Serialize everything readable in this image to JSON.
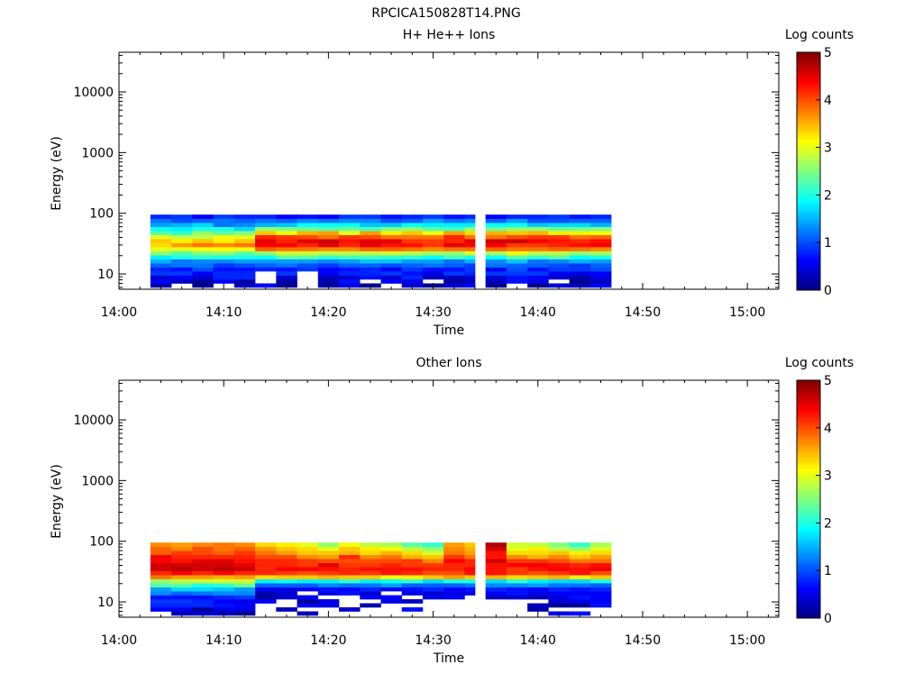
{
  "figure": {
    "title": "RPCICA150828T14.PNG"
  },
  "chart_data": [
    {
      "type": "heatmap",
      "title": "H+ He++ Ions",
      "xlabel": "Time",
      "ylabel": "Energy (eV)",
      "y_scale": "log",
      "xlim": [
        "14:00",
        "15:03"
      ],
      "ylim": [
        5.6,
        45000
      ],
      "x_ticks": [
        "14:00",
        "14:10",
        "14:20",
        "14:30",
        "14:40",
        "14:50",
        "15:00"
      ],
      "y_ticks": [
        "10",
        "100",
        "1000",
        "10000"
      ],
      "colorbar": {
        "label": "Log counts",
        "range": [
          0,
          5
        ],
        "ticks": [
          "0",
          "1",
          "2",
          "3",
          "4",
          "5"
        ]
      },
      "data_time_range": [
        "14:03",
        "14:47"
      ],
      "data_gap": [
        "14:34",
        "14:35"
      ],
      "energy_range_eV": [
        6,
        95
      ],
      "energy_bins_eV": [
        6.5,
        7.6,
        8.9,
        10.4,
        12.1,
        14.1,
        16.5,
        19.2,
        22.4,
        26.2,
        30.6,
        35.7,
        41.6,
        48.6,
        56.7,
        66.2,
        77.3,
        90.2
      ],
      "time_bins": [
        "14:03",
        "14:05",
        "14:07",
        "14:09",
        "14:11",
        "14:13",
        "14:15",
        "14:17",
        "14:19",
        "14:21",
        "14:23",
        "14:25",
        "14:27",
        "14:29",
        "14:31",
        "14:33",
        "14:35",
        "14:37",
        "14:39",
        "14:41",
        "14:43",
        "14:45"
      ],
      "log_counts": [
        [
          0.2,
          null,
          0.1,
          null,
          0.3,
          0.6,
          0.1,
          null,
          0.2,
          0.5,
          0.1,
          null,
          0.4,
          0.1,
          0.4,
          0.6,
          0.1,
          null,
          0.1,
          0.4,
          0.3,
          0.6
        ],
        [
          0.6,
          0.3,
          0.1,
          0.6,
          0.2,
          null,
          0.2,
          null,
          0.2,
          0.7,
          null,
          0.6,
          0.5,
          null,
          0.2,
          0.3,
          0.3,
          0.7,
          0.5,
          null,
          0.1,
          0.3
        ],
        [
          0.4,
          0.6,
          0.4,
          0.8,
          0.8,
          null,
          0.4,
          null,
          0.3,
          0.4,
          0.7,
          0.4,
          0.8,
          0.3,
          0.3,
          0.4,
          0.4,
          0.7,
          0.6,
          0.4,
          0.2,
          0.5
        ],
        [
          0.9,
          0.9,
          0.6,
          0.8,
          0.8,
          null,
          0.9,
          null,
          0.6,
          0.8,
          0.8,
          0.9,
          0.7,
          0.5,
          0.9,
          0.8,
          0.9,
          0.9,
          0.9,
          0.6,
          0.5,
          0.6
        ],
        [
          0.8,
          0.7,
          1.0,
          0.7,
          0.7,
          0.8,
          0.7,
          0.9,
          0.6,
          0.7,
          0.8,
          0.6,
          0.9,
          0.7,
          0.7,
          0.9,
          0.6,
          1.0,
          0.7,
          0.9,
          0.9,
          1.0
        ],
        [
          1.1,
          1.2,
          1.2,
          0.9,
          1.0,
          1.1,
          1.2,
          1.0,
          0.9,
          1.1,
          1.1,
          1.0,
          1.1,
          1.2,
          1.1,
          0.9,
          1.2,
          1.1,
          1.1,
          1.0,
          0.9,
          1.1
        ],
        [
          1.5,
          1.2,
          1.3,
          1.3,
          1.4,
          1.4,
          1.4,
          1.4,
          1.3,
          1.4,
          1.6,
          1.6,
          1.4,
          1.4,
          1.2,
          1.5,
          1.3,
          1.6,
          1.2,
          1.3,
          1.5,
          1.4
        ],
        [
          1.8,
          2.0,
          2.1,
          2.0,
          2.0,
          1.9,
          2.3,
          2.3,
          2.1,
          2.2,
          2.2,
          2.1,
          2.1,
          1.9,
          2.2,
          2.0,
          1.9,
          2.3,
          2.1,
          2.3,
          1.9,
          2.0
        ],
        [
          2.6,
          2.3,
          2.5,
          2.6,
          2.3,
          2.6,
          2.9,
          2.9,
          2.8,
          2.8,
          2.8,
          2.9,
          2.8,
          2.7,
          2.6,
          3.0,
          2.7,
          3.1,
          2.8,
          2.8,
          2.6,
          2.7
        ],
        [
          3.0,
          3.0,
          3.1,
          3.1,
          3.1,
          3.9,
          3.8,
          3.8,
          3.7,
          3.7,
          3.9,
          3.9,
          3.8,
          3.7,
          3.8,
          3.8,
          3.9,
          3.8,
          3.8,
          3.9,
          3.8,
          3.7
        ],
        [
          3.3,
          3.6,
          3.8,
          3.7,
          3.8,
          4.4,
          4.4,
          4.2,
          4.5,
          4.2,
          4.5,
          4.3,
          4.3,
          4.1,
          4.5,
          4.4,
          4.4,
          4.1,
          4.1,
          4.2,
          4.3,
          4.4
        ],
        [
          3.4,
          3.2,
          3.4,
          3.2,
          3.4,
          4.5,
          4.2,
          4.5,
          4.6,
          4.3,
          4.5,
          4.5,
          4.1,
          4.1,
          4.2,
          4.5,
          4.6,
          4.6,
          4.4,
          4.3,
          4.2,
          4.3
        ],
        [
          3.0,
          2.8,
          2.8,
          3.1,
          3.0,
          4.2,
          4.1,
          4.0,
          3.8,
          4.1,
          4.0,
          3.8,
          3.8,
          3.8,
          4.2,
          3.8,
          3.8,
          4.0,
          4.1,
          4.1,
          3.8,
          3.9
        ],
        [
          2.3,
          2.1,
          2.6,
          2.3,
          2.5,
          3.4,
          3.1,
          3.5,
          3.6,
          3.0,
          3.6,
          3.2,
          3.4,
          3.1,
          3.6,
          3.3,
          3.5,
          3.4,
          3.5,
          3.2,
          3.2,
          3.1
        ],
        [
          1.9,
          1.8,
          2.0,
          2.0,
          1.7,
          2.6,
          2.5,
          2.4,
          2.3,
          2.4,
          2.2,
          2.5,
          2.6,
          2.3,
          2.2,
          2.6,
          2.4,
          2.6,
          2.6,
          2.4,
          2.4,
          2.5
        ],
        [
          1.4,
          1.5,
          1.7,
          1.2,
          1.3,
          1.5,
          1.6,
          1.9,
          1.9,
          1.9,
          1.6,
          1.6,
          1.9,
          1.8,
          1.8,
          1.8,
          1.9,
          1.9,
          1.6,
          1.7,
          1.7,
          1.5
        ],
        [
          1.2,
          1.0,
          1.1,
          1.2,
          1.1,
          1.2,
          1.1,
          1.3,
          1.2,
          1.3,
          1.3,
          1.0,
          1.1,
          1.4,
          1.2,
          1.3,
          1.1,
          1.4,
          1.0,
          1.0,
          1.1,
          1.1
        ],
        [
          0.8,
          0.9,
          0.6,
          0.9,
          0.8,
          0.8,
          0.6,
          0.7,
          0.6,
          0.9,
          0.9,
          0.7,
          0.8,
          0.9,
          0.7,
          0.8,
          0.6,
          0.8,
          0.8,
          0.9,
          0.7,
          0.8
        ]
      ]
    },
    {
      "type": "heatmap",
      "title": "Other Ions",
      "xlabel": "Time",
      "ylabel": "Energy (eV)",
      "y_scale": "log",
      "xlim": [
        "14:00",
        "15:03"
      ],
      "ylim": [
        5.6,
        45000
      ],
      "x_ticks": [
        "14:00",
        "14:10",
        "14:20",
        "14:30",
        "14:40",
        "14:50",
        "15:00"
      ],
      "y_ticks": [
        "10",
        "100",
        "1000",
        "10000"
      ],
      "colorbar": {
        "label": "Log counts",
        "range": [
          0,
          5
        ],
        "ticks": [
          "0",
          "1",
          "2",
          "3",
          "4",
          "5"
        ]
      },
      "data_time_range": [
        "14:03",
        "14:47"
      ],
      "data_gap": [
        "14:34",
        "14:35"
      ],
      "energy_range_eV": [
        6,
        95
      ],
      "energy_bins_eV": [
        6.5,
        7.6,
        8.9,
        10.4,
        12.1,
        14.1,
        16.5,
        19.2,
        22.4,
        26.2,
        30.6,
        35.7,
        41.6,
        48.6,
        56.7,
        66.2,
        77.3,
        90.2
      ],
      "time_bins": [
        "14:03",
        "14:05",
        "14:07",
        "14:09",
        "14:11",
        "14:13",
        "14:15",
        "14:17",
        "14:19",
        "14:21",
        "14:23",
        "14:25",
        "14:27",
        "14:29",
        "14:31",
        "14:33",
        "14:35",
        "14:37",
        "14:39",
        "14:41",
        "14:43",
        "14:45"
      ],
      "log_counts": [
        [
          null,
          0.3,
          0.4,
          0.3,
          0.1,
          null,
          null,
          0.3,
          null,
          null,
          null,
          null,
          null,
          null,
          null,
          null,
          null,
          null,
          null,
          0.5,
          0.7,
          null
        ],
        [
          0.6,
          0.5,
          0.1,
          0.5,
          0.5,
          null,
          0.3,
          null,
          null,
          0.4,
          null,
          null,
          0.7,
          null,
          null,
          null,
          null,
          null,
          0.2,
          null,
          null,
          null
        ],
        [
          0.8,
          0.8,
          0.8,
          0.7,
          0.6,
          null,
          null,
          0.6,
          0.5,
          null,
          0.2,
          null,
          null,
          null,
          null,
          null,
          null,
          null,
          0.3,
          0.1,
          0.1,
          0.7
        ],
        [
          0.9,
          0.9,
          0.8,
          0.6,
          0.5,
          0.6,
          null,
          0.1,
          0.5,
          null,
          null,
          0.5,
          0.3,
          null,
          null,
          null,
          null,
          null,
          null,
          0.4,
          0.5,
          0.6
        ],
        [
          0.7,
          0.7,
          0.7,
          0.8,
          0.9,
          0.2,
          0.4,
          0.6,
          null,
          null,
          0.6,
          0.6,
          null,
          0.5,
          0.6,
          null,
          0.3,
          0.4,
          0.3,
          0.5,
          0.7,
          0.6
        ],
        [
          1.3,
          1.1,
          1.2,
          1.3,
          1.3,
          0.2,
          0.4,
          null,
          0.5,
          0.7,
          0.4,
          null,
          0.5,
          0.4,
          0.5,
          0.5,
          0.6,
          0.7,
          0.5,
          0.6,
          0.6,
          0.6
        ],
        [
          1.4,
          1.7,
          1.7,
          1.6,
          1.4,
          0.6,
          0.5,
          0.6,
          0.7,
          0.6,
          0.8,
          0.6,
          0.7,
          0.8,
          0.6,
          0.7,
          0.8,
          0.7,
          0.6,
          0.8,
          0.7,
          0.8
        ],
        [
          2.3,
          2.3,
          2.0,
          2.1,
          2.4,
          1.1,
          1.1,
          1.1,
          1.3,
          1.2,
          1.2,
          1.4,
          1.1,
          1.1,
          1.1,
          1.2,
          1.3,
          1.3,
          1.4,
          1.2,
          1.2,
          1.1
        ],
        [
          2.6,
          2.8,
          2.9,
          2.9,
          2.9,
          1.8,
          1.9,
          1.8,
          1.8,
          2.1,
          1.8,
          1.9,
          2.1,
          1.7,
          2.0,
          2.0,
          1.7,
          2.1,
          1.8,
          1.7,
          1.7,
          2.0
        ],
        [
          3.8,
          3.6,
          3.6,
          3.5,
          3.6,
          3.3,
          3.4,
          3.4,
          3.5,
          3.4,
          3.4,
          3.1,
          3.2,
          3.4,
          3.6,
          3.4,
          3.5,
          3.3,
          3.4,
          3.5,
          3.2,
          3.4
        ],
        [
          4.2,
          4.4,
          4.2,
          4.4,
          4.2,
          4.2,
          4.1,
          4.0,
          4.1,
          4.2,
          4.1,
          4.3,
          4.2,
          4.0,
          4.0,
          4.3,
          4.3,
          4.1,
          4.0,
          4.1,
          4.3,
          4.0
        ],
        [
          4.6,
          4.7,
          4.6,
          4.7,
          4.6,
          4.2,
          4.4,
          4.4,
          4.3,
          4.2,
          4.3,
          4.3,
          4.3,
          4.2,
          4.2,
          4.4,
          4.3,
          4.1,
          4.3,
          4.4,
          4.3,
          4.4
        ],
        [
          4.6,
          4.6,
          4.6,
          4.6,
          4.5,
          4.2,
          4.2,
          4.1,
          4.5,
          4.1,
          4.1,
          4.2,
          4.1,
          4.1,
          4.2,
          4.2,
          4.3,
          4.4,
          4.4,
          4.3,
          4.2,
          4.3
        ],
        [
          4.4,
          4.3,
          4.5,
          4.5,
          4.3,
          4.2,
          4.2,
          4.1,
          4.0,
          4.0,
          4.0,
          4.0,
          4.1,
          3.7,
          4.4,
          4.2,
          4.6,
          4.1,
          4.1,
          4.0,
          3.8,
          3.8
        ],
        [
          4.4,
          4.2,
          4.2,
          4.2,
          4.2,
          4.0,
          4.0,
          3.7,
          3.6,
          4.2,
          3.7,
          3.8,
          3.5,
          3.4,
          4.1,
          3.8,
          4.3,
          3.7,
          3.5,
          3.7,
          3.4,
          3.6
        ],
        [
          3.9,
          4.1,
          4.0,
          3.9,
          4.1,
          3.8,
          3.6,
          3.4,
          3.4,
          3.5,
          3.3,
          3.5,
          3.3,
          2.9,
          3.8,
          3.6,
          4.3,
          3.3,
          3.3,
          3.4,
          3.2,
          3.3
        ],
        [
          3.9,
          3.7,
          4.0,
          3.8,
          3.9,
          3.6,
          3.4,
          3.3,
          3.0,
          3.4,
          3.2,
          3.1,
          2.8,
          2.6,
          3.7,
          3.5,
          4.6,
          3.0,
          3.2,
          2.8,
          2.6,
          3.0
        ],
        [
          3.7,
          3.6,
          3.7,
          3.8,
          3.7,
          3.3,
          3.2,
          3.0,
          2.6,
          3.1,
          2.8,
          2.7,
          2.3,
          2.1,
          3.6,
          3.4,
          4.8,
          2.9,
          2.8,
          2.5,
          2.1,
          2.7
        ]
      ]
    }
  ]
}
